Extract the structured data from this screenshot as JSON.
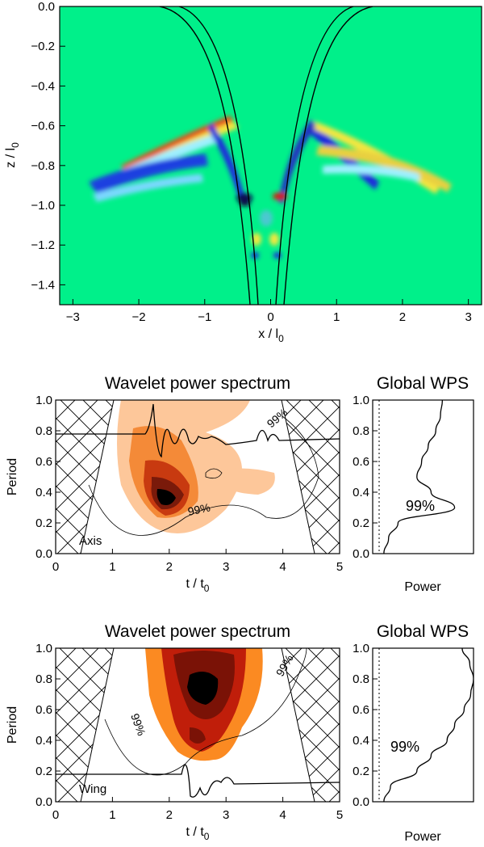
{
  "figure": "Simulation snapshot and wavelet analysis",
  "chart_data": [
    {
      "type": "heatmap",
      "xlabel": "x / l0",
      "ylabel": "z / l0",
      "xlim": [
        -3.2,
        3.2
      ],
      "ylim": [
        -1.5,
        0.0
      ],
      "xticks": [
        -3,
        -2,
        -1,
        0,
        1,
        2,
        3
      ],
      "xtick_labels": [
        "−3",
        "−2",
        "−1",
        "0",
        "1",
        "2",
        "3"
      ],
      "yticks": [
        0.0,
        -0.2,
        -0.4,
        -0.6,
        -0.8,
        -1.0,
        -1.2,
        -1.4
      ],
      "ytick_labels": [
        "0.0",
        "−0.2",
        "−0.4",
        "−0.6",
        "−0.8",
        "−1.0",
        "−1.2",
        "−1.4"
      ],
      "field_lines_x_at_bottom": [
        -0.32,
        -0.22,
        0.22,
        0.32
      ],
      "colors": {
        "background": "#00f08a",
        "positive": "#e02010",
        "negative": "#1a2adc"
      }
    },
    {
      "type": "heatmap",
      "title": "Wavelet power spectrum",
      "xlabel": "t / t0",
      "ylabel": "Period",
      "xlim": [
        0,
        5
      ],
      "ylim": [
        0,
        1.0
      ],
      "xticks": [
        0,
        1,
        2,
        3,
        4,
        5
      ],
      "yticks": [
        0.0,
        0.2,
        0.4,
        0.6,
        0.8,
        1.0
      ],
      "ytick_labels": [
        "0.0",
        "0.2",
        "0.4",
        "0.6",
        "0.8",
        "1.0"
      ],
      "panel_label": "Axis",
      "significance_label": "99%",
      "power_peak": {
        "t": 1.9,
        "period": 0.35
      }
    },
    {
      "type": "line",
      "title": "Global WPS",
      "xlabel": "Power",
      "ylabel": "Period",
      "significance_label": "99%",
      "ylim": [
        0,
        1.0
      ],
      "period": [
        0.0,
        0.1,
        0.2,
        0.3,
        0.4,
        0.5,
        0.6,
        0.7,
        0.8,
        0.9,
        1.0
      ],
      "power": [
        0.05,
        0.1,
        0.2,
        0.8,
        0.55,
        0.4,
        0.45,
        0.52,
        0.6,
        0.65,
        0.67
      ]
    },
    {
      "type": "heatmap",
      "title": "Wavelet power spectrum",
      "xlabel": "t / t0",
      "ylabel": "Period",
      "xlim": [
        0,
        5
      ],
      "ylim": [
        0,
        1.0
      ],
      "xticks": [
        0,
        1,
        2,
        3,
        4,
        5
      ],
      "yticks": [
        0.0,
        0.2,
        0.4,
        0.6,
        0.8,
        1.0
      ],
      "ytick_labels": [
        "0.0",
        "0.2",
        "0.4",
        "0.6",
        "0.8",
        "1.0"
      ],
      "panel_label": "Wing",
      "significance_label": "99%",
      "power_peak": {
        "t": 2.5,
        "period": 0.75
      }
    },
    {
      "type": "line",
      "title": "Global WPS",
      "xlabel": "Power",
      "ylabel": "Period",
      "significance_label": "99%",
      "ylim": [
        0,
        1.0
      ],
      "period": [
        0.0,
        0.1,
        0.2,
        0.3,
        0.4,
        0.5,
        0.6,
        0.7,
        0.8,
        0.9,
        1.0
      ],
      "power": [
        0.05,
        0.12,
        0.4,
        0.55,
        0.72,
        0.8,
        0.9,
        0.97,
        1.0,
        0.96,
        0.88
      ]
    }
  ]
}
